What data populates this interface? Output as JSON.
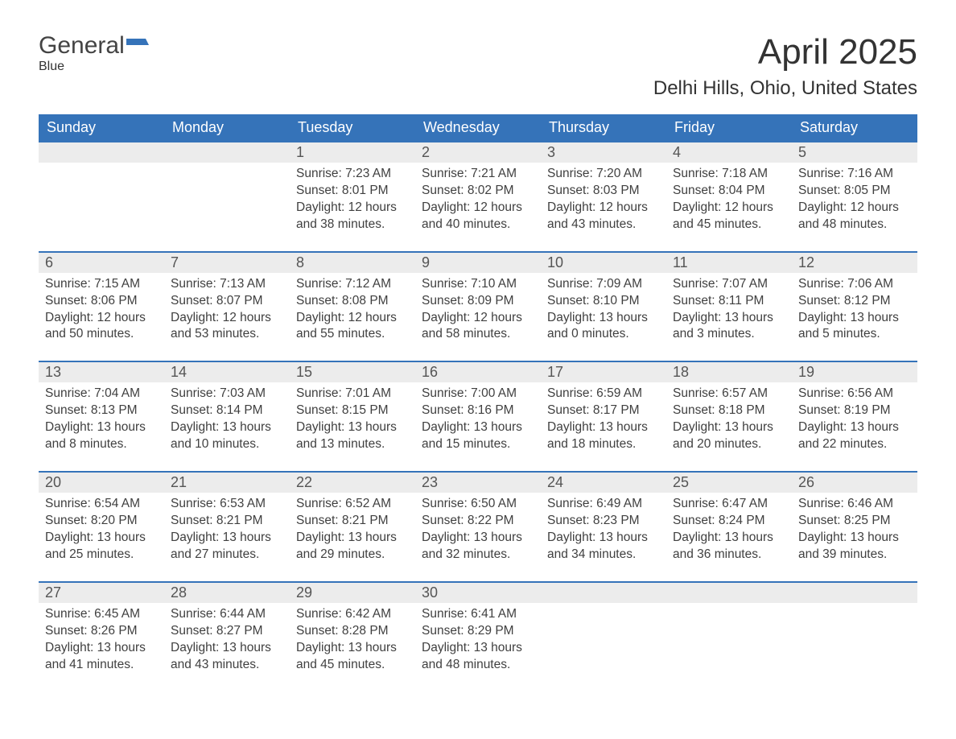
{
  "brand": {
    "general": "General",
    "blue": "Blue"
  },
  "title": "April 2025",
  "location": "Delhi Hills, Ohio, United States",
  "colors": {
    "header_bg": "#3573b9",
    "header_text": "#ffffff",
    "daynum_bg": "#ececec",
    "row_border": "#3573b9",
    "body_text": "#404040",
    "page_bg": "#ffffff",
    "brand_blue": "#3573b9"
  },
  "weekdays": [
    "Sunday",
    "Monday",
    "Tuesday",
    "Wednesday",
    "Thursday",
    "Friday",
    "Saturday"
  ],
  "weeks": [
    [
      null,
      null,
      {
        "n": "1",
        "sr": "7:23 AM",
        "ss": "8:01 PM",
        "dl": "12 hours and 38 minutes."
      },
      {
        "n": "2",
        "sr": "7:21 AM",
        "ss": "8:02 PM",
        "dl": "12 hours and 40 minutes."
      },
      {
        "n": "3",
        "sr": "7:20 AM",
        "ss": "8:03 PM",
        "dl": "12 hours and 43 minutes."
      },
      {
        "n": "4",
        "sr": "7:18 AM",
        "ss": "8:04 PM",
        "dl": "12 hours and 45 minutes."
      },
      {
        "n": "5",
        "sr": "7:16 AM",
        "ss": "8:05 PM",
        "dl": "12 hours and 48 minutes."
      }
    ],
    [
      {
        "n": "6",
        "sr": "7:15 AM",
        "ss": "8:06 PM",
        "dl": "12 hours and 50 minutes."
      },
      {
        "n": "7",
        "sr": "7:13 AM",
        "ss": "8:07 PM",
        "dl": "12 hours and 53 minutes."
      },
      {
        "n": "8",
        "sr": "7:12 AM",
        "ss": "8:08 PM",
        "dl": "12 hours and 55 minutes."
      },
      {
        "n": "9",
        "sr": "7:10 AM",
        "ss": "8:09 PM",
        "dl": "12 hours and 58 minutes."
      },
      {
        "n": "10",
        "sr": "7:09 AM",
        "ss": "8:10 PM",
        "dl": "13 hours and 0 minutes."
      },
      {
        "n": "11",
        "sr": "7:07 AM",
        "ss": "8:11 PM",
        "dl": "13 hours and 3 minutes."
      },
      {
        "n": "12",
        "sr": "7:06 AM",
        "ss": "8:12 PM",
        "dl": "13 hours and 5 minutes."
      }
    ],
    [
      {
        "n": "13",
        "sr": "7:04 AM",
        "ss": "8:13 PM",
        "dl": "13 hours and 8 minutes."
      },
      {
        "n": "14",
        "sr": "7:03 AM",
        "ss": "8:14 PM",
        "dl": "13 hours and 10 minutes."
      },
      {
        "n": "15",
        "sr": "7:01 AM",
        "ss": "8:15 PM",
        "dl": "13 hours and 13 minutes."
      },
      {
        "n": "16",
        "sr": "7:00 AM",
        "ss": "8:16 PM",
        "dl": "13 hours and 15 minutes."
      },
      {
        "n": "17",
        "sr": "6:59 AM",
        "ss": "8:17 PM",
        "dl": "13 hours and 18 minutes."
      },
      {
        "n": "18",
        "sr": "6:57 AM",
        "ss": "8:18 PM",
        "dl": "13 hours and 20 minutes."
      },
      {
        "n": "19",
        "sr": "6:56 AM",
        "ss": "8:19 PM",
        "dl": "13 hours and 22 minutes."
      }
    ],
    [
      {
        "n": "20",
        "sr": "6:54 AM",
        "ss": "8:20 PM",
        "dl": "13 hours and 25 minutes."
      },
      {
        "n": "21",
        "sr": "6:53 AM",
        "ss": "8:21 PM",
        "dl": "13 hours and 27 minutes."
      },
      {
        "n": "22",
        "sr": "6:52 AM",
        "ss": "8:21 PM",
        "dl": "13 hours and 29 minutes."
      },
      {
        "n": "23",
        "sr": "6:50 AM",
        "ss": "8:22 PM",
        "dl": "13 hours and 32 minutes."
      },
      {
        "n": "24",
        "sr": "6:49 AM",
        "ss": "8:23 PM",
        "dl": "13 hours and 34 minutes."
      },
      {
        "n": "25",
        "sr": "6:47 AM",
        "ss": "8:24 PM",
        "dl": "13 hours and 36 minutes."
      },
      {
        "n": "26",
        "sr": "6:46 AM",
        "ss": "8:25 PM",
        "dl": "13 hours and 39 minutes."
      }
    ],
    [
      {
        "n": "27",
        "sr": "6:45 AM",
        "ss": "8:26 PM",
        "dl": "13 hours and 41 minutes."
      },
      {
        "n": "28",
        "sr": "6:44 AM",
        "ss": "8:27 PM",
        "dl": "13 hours and 43 minutes."
      },
      {
        "n": "29",
        "sr": "6:42 AM",
        "ss": "8:28 PM",
        "dl": "13 hours and 45 minutes."
      },
      {
        "n": "30",
        "sr": "6:41 AM",
        "ss": "8:29 PM",
        "dl": "13 hours and 48 minutes."
      },
      null,
      null,
      null
    ]
  ],
  "labels": {
    "sunrise": "Sunrise: ",
    "sunset": "Sunset: ",
    "daylight": "Daylight: "
  }
}
